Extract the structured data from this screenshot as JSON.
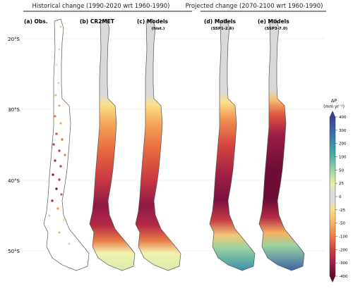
{
  "headers": {
    "historical": "Historical change (1990-2020 wrt 1960-1990)",
    "projected": "Projected change (2070-2100 wrt 1960-1990)"
  },
  "panels": [
    {
      "id": "a",
      "title": "(a) Obs.",
      "subtitle": "",
      "kind": "obs"
    },
    {
      "id": "b",
      "title": "(b) CR2MET",
      "subtitle": "",
      "kind": "hist"
    },
    {
      "id": "c",
      "title": "(c) Models",
      "subtitle": "(hist.)",
      "kind": "hist"
    },
    {
      "id": "d",
      "title": "(d) Models",
      "subtitle": "(SSP1-2.6)",
      "kind": "ssp1"
    },
    {
      "id": "e",
      "title": "(e) Models",
      "subtitle": "(SSP3-7.0)",
      "kind": "ssp3"
    }
  ],
  "latitude_labels": [
    "20°S",
    "30°S",
    "40°S",
    "50°S"
  ],
  "colorbar": {
    "label_line1": "ΔP",
    "label_line2": "(mm yr⁻¹)",
    "ticks": [
      "400",
      "300",
      "200",
      "100",
      "50",
      "25",
      "0",
      "-25",
      "-50",
      "-100",
      "-200",
      "-300",
      "-400"
    ],
    "colors": [
      "#3b3f8f",
      "#3a64a6",
      "#3a8fab",
      "#4bb3a5",
      "#9ad3a0",
      "#e6f0a6",
      "#dcdcdc",
      "#fbe08c",
      "#f7b163",
      "#ee7a43",
      "#d1413f",
      "#9c1d46",
      "#5c0a2a"
    ]
  },
  "colors": {
    "land_nodata": "#d9d9d9",
    "coast": "#555555"
  }
}
